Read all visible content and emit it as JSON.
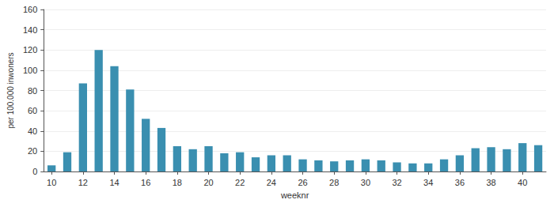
{
  "chart_data": {
    "type": "bar",
    "xlabel": "weeknr",
    "ylabel": "per 100.000 inwoners",
    "categories": [
      "10",
      null,
      "12",
      null,
      "14",
      null,
      "16",
      null,
      "18",
      null,
      "20",
      null,
      "22",
      null,
      "24",
      null,
      "26",
      null,
      "28",
      null,
      "30",
      null,
      "32",
      null,
      "34",
      null,
      "36",
      null,
      "38",
      null,
      "40",
      null
    ],
    "values": [
      6,
      19,
      87,
      120,
      104,
      81,
      52,
      43,
      25,
      22,
      25,
      18,
      19,
      14,
      16,
      16,
      12,
      11,
      10,
      11,
      12,
      11,
      9,
      8,
      8,
      12,
      16,
      23,
      24,
      22,
      28,
      26
    ],
    "color": "#3a8fb0",
    "ylim": [
      0,
      160
    ],
    "yticks": [
      0,
      20,
      40,
      60,
      80,
      100,
      120,
      140,
      160
    ],
    "grid": true
  }
}
